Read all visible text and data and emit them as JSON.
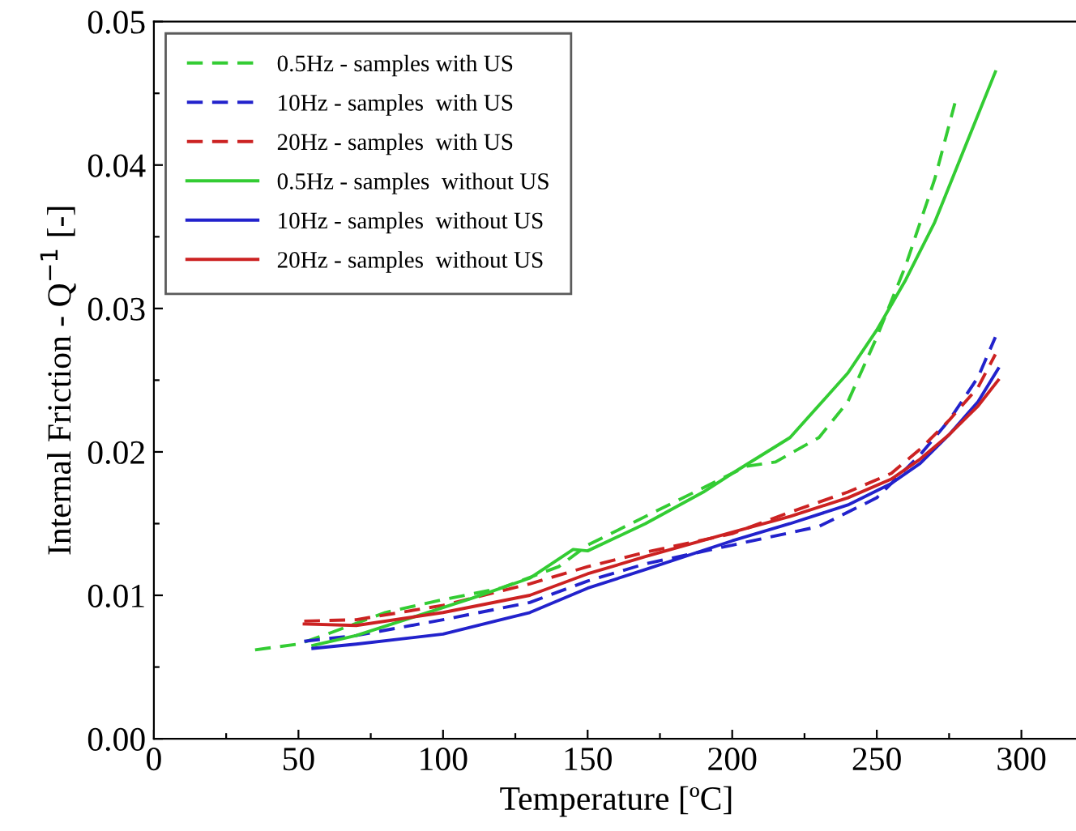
{
  "chart_data": {
    "type": "line",
    "xlabel": "Temperature [ºC]",
    "ylabel": "Internal Friction - Q$^{−1}$ [-]",
    "xlim": [
      0,
      320
    ],
    "ylim": [
      0,
      0.05
    ],
    "xticks": [
      0,
      {
        "value": 25,
        "label": null
      },
      50,
      {
        "value": 75,
        "label": null
      },
      100,
      {
        "value": 125,
        "label": null
      },
      150,
      {
        "value": 175,
        "label": null
      },
      200,
      {
        "value": 225,
        "label": null
      },
      250,
      {
        "value": 275,
        "label": null
      },
      300
    ],
    "yticks": [
      {
        "value": 0,
        "label": "0.00"
      },
      {
        "value": 0.005,
        "label": null
      },
      {
        "value": 0.01,
        "label": "0.01"
      },
      {
        "value": 0.015,
        "label": null
      },
      {
        "value": 0.02,
        "label": "0.02"
      },
      {
        "value": 0.025,
        "label": null
      },
      {
        "value": 0.03,
        "label": "0.03"
      },
      {
        "value": 0.035,
        "label": null
      },
      {
        "value": 0.04,
        "label": "0.04"
      },
      {
        "value": 0.045,
        "label": null
      },
      {
        "value": 0.05,
        "label": "0.05"
      }
    ],
    "grid": false,
    "legend": "top left",
    "marker": "none",
    "series": [
      {
        "name": "0.5Hz - samples with US",
        "color": "#33cc33",
        "line_style": "dashed",
        "x": [
          35,
          50,
          60,
          80,
          100,
          120,
          140,
          150,
          170,
          190,
          205,
          215,
          230,
          240,
          250,
          260,
          270,
          277
        ],
        "values": [
          0.0062,
          0.0066,
          0.0073,
          0.0088,
          0.0097,
          0.0105,
          0.012,
          0.0135,
          0.0155,
          0.0175,
          0.019,
          0.0193,
          0.021,
          0.0235,
          0.028,
          0.033,
          0.039,
          0.0443
        ]
      },
      {
        "name": "10Hz - samples  with US",
        "color": "#2222cc",
        "line_style": "dashed",
        "x": [
          52,
          70,
          100,
          130,
          150,
          170,
          200,
          230,
          250,
          265,
          275,
          285,
          291
        ],
        "values": [
          0.0068,
          0.0072,
          0.0083,
          0.0095,
          0.011,
          0.0122,
          0.0135,
          0.0148,
          0.0168,
          0.0198,
          0.0222,
          0.0252,
          0.028
        ]
      },
      {
        "name": "20Hz - samples  with US",
        "color": "#cc2222",
        "line_style": "dashed",
        "x": [
          52,
          70,
          100,
          130,
          150,
          170,
          200,
          220,
          240,
          255,
          265,
          275,
          285,
          291
        ],
        "values": [
          0.0082,
          0.0083,
          0.0093,
          0.0108,
          0.012,
          0.013,
          0.0143,
          0.0158,
          0.0172,
          0.0185,
          0.0202,
          0.0222,
          0.0245,
          0.0268
        ]
      },
      {
        "name": "0.5Hz - samples  without US",
        "color": "#33cc33",
        "line_style": "solid",
        "x": [
          55,
          70,
          90,
          110,
          130,
          145,
          150,
          170,
          190,
          200,
          220,
          240,
          250,
          260,
          270,
          280,
          291
        ],
        "values": [
          0.0065,
          0.0072,
          0.0085,
          0.0098,
          0.0112,
          0.0132,
          0.0131,
          0.015,
          0.0172,
          0.0185,
          0.021,
          0.0255,
          0.0285,
          0.032,
          0.036,
          0.041,
          0.0465
        ]
      },
      {
        "name": "10Hz - samples  without US",
        "color": "#2222cc",
        "line_style": "solid",
        "x": [
          55,
          70,
          100,
          130,
          150,
          170,
          200,
          220,
          240,
          255,
          265,
          275,
          285,
          292
        ],
        "values": [
          0.0063,
          0.0066,
          0.0073,
          0.0088,
          0.0105,
          0.0118,
          0.0138,
          0.015,
          0.0163,
          0.0178,
          0.0192,
          0.0212,
          0.0235,
          0.0258
        ]
      },
      {
        "name": "20Hz - samples  without US",
        "color": "#cc2222",
        "line_style": "solid",
        "x": [
          52,
          70,
          100,
          130,
          150,
          170,
          200,
          220,
          240,
          255,
          265,
          275,
          285,
          292
        ],
        "values": [
          0.008,
          0.0079,
          0.0088,
          0.01,
          0.0115,
          0.0127,
          0.0144,
          0.0155,
          0.0168,
          0.0181,
          0.0195,
          0.0212,
          0.0232,
          0.025
        ]
      }
    ]
  }
}
